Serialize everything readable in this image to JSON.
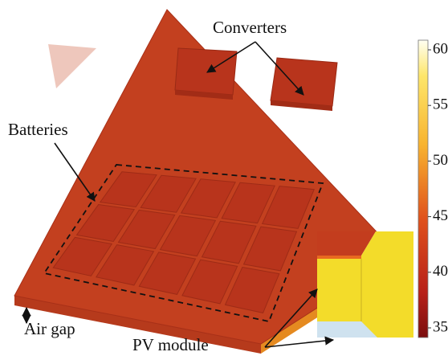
{
  "labels": {
    "converters": "Converters",
    "batteries": "Batteries",
    "air_gap": "Air gap",
    "pv_module": "PV module"
  },
  "colorbar": {
    "ticks": [
      60,
      55,
      50,
      45,
      40,
      35
    ]
  }
}
